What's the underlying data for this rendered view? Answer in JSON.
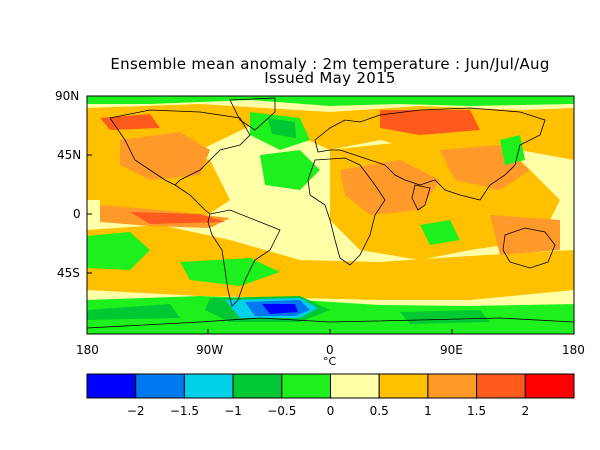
{
  "title": {
    "line1": "Ensemble mean anomaly : 2m temperature : Jun/Jul/Aug",
    "line2": "Issued May 2015"
  },
  "map": {
    "y_labels": [
      "90N",
      "45N",
      "0",
      "45S"
    ],
    "x_labels": [
      "180",
      "90W",
      "0",
      "90E",
      "180"
    ],
    "x_unit": "°C"
  },
  "colorbar": {
    "tick_labels": [
      "-2",
      "-1.5",
      "-1",
      "-0.5",
      "0",
      "0.5",
      "1",
      "1.5",
      "2"
    ],
    "bins": [
      {
        "color": "#0000ff"
      },
      {
        "color": "#0078f0"
      },
      {
        "color": "#00d0e8"
      },
      {
        "color": "#00c832"
      },
      {
        "color": "#1ef01e"
      },
      {
        "color": "#ffffa8"
      },
      {
        "color": "#ffc000"
      },
      {
        "color": "#ff9a2a"
      },
      {
        "color": "#ff5a1e"
      },
      {
        "color": "#ff0000"
      }
    ]
  }
}
